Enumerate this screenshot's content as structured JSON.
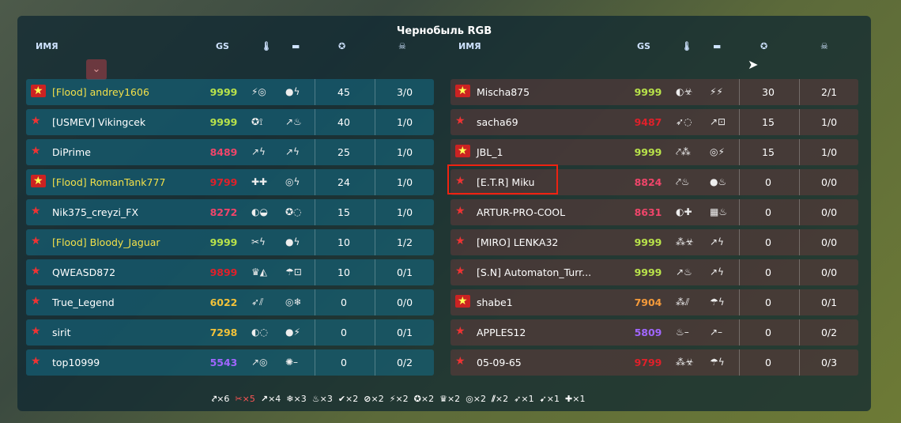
{
  "title": "Чернобыль RGB",
  "headers": {
    "name": "ИМЯ",
    "gs": "GS",
    "turret_icon": "turret-icon",
    "hull_icon": "hull-icon",
    "score_icon": "star-icon",
    "kills_icon": "skull-icon"
  },
  "colors": {
    "gs_max": "#b9e34a",
    "gs_red": "#e0202a",
    "gs_pink": "#f0456a",
    "gs_yellow": "#f2c23a",
    "gs_orange": "#f59a3a",
    "gs_purple": "#a066ff",
    "clan_name": "#f2e04a",
    "selection": "#e21a1a"
  },
  "left": [
    {
      "name": "[Flood] andrey1606",
      "gs": "9999",
      "gsc": "gs_max",
      "w": "⚡◎",
      "h": "●ϟ",
      "score": "45",
      "kd": "3/0",
      "clan": true
    },
    {
      "name": "[USMEV] Vikingcek",
      "gs": "9999",
      "gsc": "gs_max",
      "w": "✪⟟",
      "h": "↗♨",
      "score": "40",
      "kd": "1/0",
      "clan": false
    },
    {
      "name": "DiPrime",
      "gs": "8489",
      "gsc": "gs_pink",
      "w": "↗ϟ",
      "h": "↗ϟ",
      "score": "25",
      "kd": "1/0",
      "clan": false
    },
    {
      "name": "[Flood] RomanTank777",
      "gs": "9799",
      "gsc": "gs_red",
      "w": "✚✚",
      "h": "◎ϟ",
      "score": "24",
      "kd": "1/0",
      "clan": true
    },
    {
      "name": "Nik375_creyzi_FX",
      "gs": "8272",
      "gsc": "gs_pink",
      "w": "◐◒",
      "h": "✪◌",
      "score": "15",
      "kd": "1/0",
      "clan": false
    },
    {
      "name": "[Flood] Bloody_Jaguar",
      "gs": "9999",
      "gsc": "gs_max",
      "w": "✂ϟ",
      "h": "●ϟ",
      "score": "10",
      "kd": "1/2",
      "clan": false
    },
    {
      "name": "QWEASD872",
      "gs": "9899",
      "gsc": "gs_red",
      "w": "♛◭",
      "h": "☂⊡",
      "score": "10",
      "kd": "0/1",
      "clan": false
    },
    {
      "name": "True_Legend",
      "gs": "6022",
      "gsc": "gs_yellow",
      "w": "➶⫽",
      "h": "◎❄",
      "score": "0",
      "kd": "0/0",
      "clan": false
    },
    {
      "name": "sirit",
      "gs": "7298",
      "gsc": "gs_yellow",
      "w": "◐◌",
      "h": "●⚡",
      "score": "0",
      "kd": "0/1",
      "clan": false
    },
    {
      "name": "top10999",
      "gs": "5543",
      "gsc": "gs_purple",
      "w": "↗◎",
      "h": "✺–",
      "score": "0",
      "kd": "0/2",
      "clan": false
    }
  ],
  "right": [
    {
      "name": "Mischa875",
      "gs": "9999",
      "gsc": "gs_max",
      "w": "◐☣",
      "h": "⚡⚡",
      "score": "30",
      "kd": "2/1",
      "clan": true
    },
    {
      "name": "sacha69",
      "gs": "9487",
      "gsc": "gs_red",
      "w": "➶◌",
      "h": "↗⊡",
      "score": "15",
      "kd": "1/0",
      "clan": false
    },
    {
      "name": "JBL_1",
      "gs": "9999",
      "gsc": "gs_max",
      "w": "⤤⁂",
      "h": "◎⚡",
      "score": "15",
      "kd": "1/0",
      "clan": true
    },
    {
      "name": "[E.T.R] Miku",
      "gs": "8824",
      "gsc": "gs_pink",
      "w": "⤤♨",
      "h": "●♨",
      "score": "0",
      "kd": "0/0",
      "clan": false
    },
    {
      "name": "ARTUR-PRO-COOL",
      "gs": "8631",
      "gsc": "gs_pink",
      "w": "◐✚",
      "h": "▦♨",
      "score": "0",
      "kd": "0/0",
      "clan": false
    },
    {
      "name": "[MIRO] LENKA32",
      "gs": "9999",
      "gsc": "gs_max",
      "w": "⁂☣",
      "h": "↗ϟ",
      "score": "0",
      "kd": "0/0",
      "clan": false
    },
    {
      "name": "[S.N] Automaton_Turr...",
      "gs": "9999",
      "gsc": "gs_max",
      "w": "↗♨",
      "h": "↗ϟ",
      "score": "0",
      "kd": "0/0",
      "clan": false
    },
    {
      "name": "shabe1",
      "gs": "7904",
      "gsc": "gs_orange",
      "w": "⁂⫽",
      "h": "☂ϟ",
      "score": "0",
      "kd": "0/1",
      "clan": true
    },
    {
      "name": "APPLES12",
      "gs": "5809",
      "gsc": "gs_purple",
      "w": "♨–",
      "h": "↗–",
      "score": "0",
      "kd": "0/2",
      "clan": false
    },
    {
      "name": "05-09-65",
      "gs": "9799",
      "gsc": "gs_red",
      "w": "⁂☣",
      "h": "☂ϟ",
      "score": "0",
      "kd": "0/3",
      "clan": false
    }
  ],
  "summary": [
    {
      "icon": "⤤",
      "count": "×6"
    },
    {
      "icon": "✂",
      "count": "×5",
      "red": true
    },
    {
      "icon": "↗",
      "count": "×4"
    },
    {
      "icon": "❄",
      "count": "×3"
    },
    {
      "icon": "♨",
      "count": "×3"
    },
    {
      "icon": "✔",
      "count": "×2"
    },
    {
      "icon": "⊘",
      "count": "×2"
    },
    {
      "icon": "⚡",
      "count": "×2"
    },
    {
      "icon": "✪",
      "count": "×2"
    },
    {
      "icon": "♛",
      "count": "×2"
    },
    {
      "icon": "◎",
      "count": "×2"
    },
    {
      "icon": "⫽",
      "count": "×2"
    },
    {
      "icon": "➶",
      "count": "×1"
    },
    {
      "icon": "➹",
      "count": "×1"
    },
    {
      "icon": "✚",
      "count": "×1"
    }
  ]
}
